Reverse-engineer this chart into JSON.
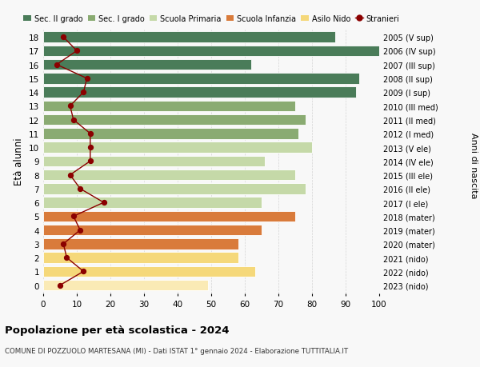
{
  "ages": [
    18,
    17,
    16,
    15,
    14,
    13,
    12,
    11,
    10,
    9,
    8,
    7,
    6,
    5,
    4,
    3,
    2,
    1,
    0
  ],
  "bar_values": [
    87,
    100,
    62,
    94,
    93,
    75,
    78,
    76,
    80,
    66,
    75,
    78,
    65,
    75,
    65,
    58,
    58,
    63,
    49
  ],
  "stranieri": [
    6,
    10,
    4,
    13,
    12,
    8,
    9,
    14,
    14,
    14,
    8,
    11,
    18,
    9,
    11,
    6,
    7,
    12,
    5
  ],
  "right_labels": [
    "2005 (V sup)",
    "2006 (IV sup)",
    "2007 (III sup)",
    "2008 (II sup)",
    "2009 (I sup)",
    "2010 (III med)",
    "2011 (II med)",
    "2012 (I med)",
    "2013 (V ele)",
    "2014 (IV ele)",
    "2015 (III ele)",
    "2016 (II ele)",
    "2017 (I ele)",
    "2018 (mater)",
    "2019 (mater)",
    "2020 (mater)",
    "2021 (nido)",
    "2022 (nido)",
    "2023 (nido)"
  ],
  "color_per_age": [
    "#4a7c59",
    "#4a7c59",
    "#4a7c59",
    "#4a7c59",
    "#4a7c59",
    "#8aab72",
    "#8aab72",
    "#8aab72",
    "#c5d9a8",
    "#c5d9a8",
    "#c5d9a8",
    "#c5d9a8",
    "#c5d9a8",
    "#d97b3b",
    "#d97b3b",
    "#d97b3b",
    "#f5d87a",
    "#f5d87a",
    "#faeab5"
  ],
  "stranieri_color": "#8b0000",
  "ylabel": "Età alunni",
  "right_ylabel": "Anni di nascita",
  "xlim": [
    0,
    100
  ],
  "xticks": [
    0,
    10,
    20,
    30,
    40,
    50,
    60,
    70,
    80,
    90,
    100
  ],
  "legend_labels": [
    "Sec. II grado",
    "Sec. I grado",
    "Scuola Primaria",
    "Scuola Infanzia",
    "Asilo Nido",
    "Stranieri"
  ],
  "legend_colors": [
    "#4a7c59",
    "#8aab72",
    "#c5d9a8",
    "#d97b3b",
    "#f5d87a",
    "#8b0000"
  ],
  "bg_color": "#f8f8f8",
  "grid_color": "#cccccc",
  "title": "Popolazione per età scolastica - 2024",
  "subtitle": "COMUNE DI POZZUOLO MARTESANA (MI) - Dati ISTAT 1° gennaio 2024 - Elaborazione TUTTITALIA.IT"
}
